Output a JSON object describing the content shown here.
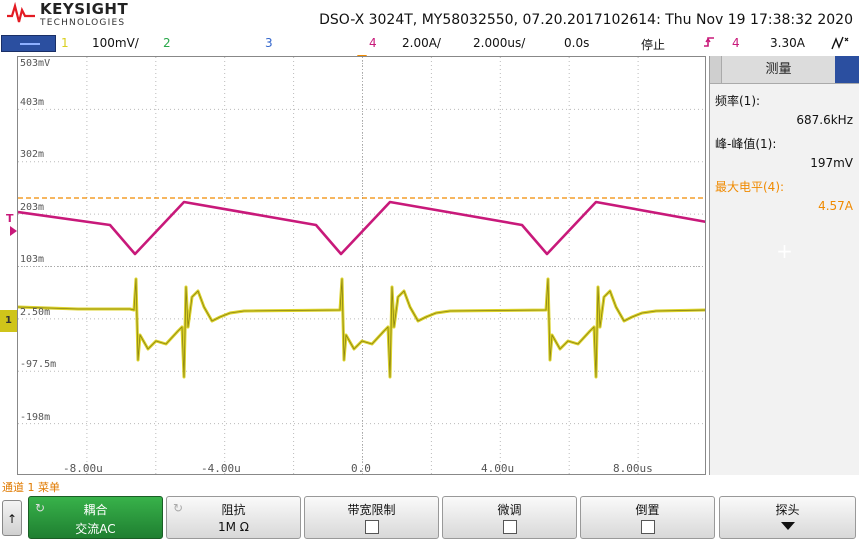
{
  "header": {
    "brand": "KEYSIGHT",
    "brand_sub": "TECHNOLOGIES",
    "model_line": "DSO-X 3024T, MY58032550, 07.20.2017102614: Thu Nov 19 17:38:32 2020"
  },
  "status_bar": {
    "ch1_num": "1",
    "ch1_scale": "100mV/",
    "ch2_num": "2",
    "ch3_num": "3",
    "ch4_num": "4",
    "ch4_scale": "2.00A/",
    "timebase": "2.000us/",
    "delay": "0.0s",
    "run_state": "停止",
    "trig_icon": "rising-edge-icon",
    "trig_channel": "4",
    "trig_level": "3.30A",
    "acq_icon": "acquisition-icon"
  },
  "colors": {
    "ch1": "#d9cf1e",
    "ch4": "#c8197a",
    "trigger": "#f08a00",
    "softkey_active": "#2a9a3e",
    "accent_blue": "#2b4fa0"
  },
  "scope": {
    "y_labels": [
      "503mV",
      "403m",
      "302m",
      "203m",
      "103m",
      "2.50m",
      "-97.5m",
      "-198m"
    ],
    "x_labels": [
      "-8.00u",
      "-4.00u",
      "0.0",
      "4.00u",
      "8.00us"
    ],
    "ch4_marker": "T",
    "ch1_marker": "1"
  },
  "measurements": {
    "title": "测量",
    "items": [
      {
        "label": "频率(1):",
        "value": "687.6kHz",
        "highlight": false
      },
      {
        "label": "峰-峰值(1):",
        "value": "197mV",
        "highlight": false
      },
      {
        "label": "最大电平(4):",
        "value": "4.57A",
        "highlight": true
      }
    ],
    "add_symbol": "+"
  },
  "help_text": "通道 1 菜单",
  "softkeys": {
    "up_symbol": "↑",
    "coupling": {
      "label": "耦合",
      "value": "交流AC"
    },
    "impedance": {
      "label": "阻抗",
      "value": "1M Ω"
    },
    "bw_limit": {
      "label": "带宽限制"
    },
    "fine": {
      "label": "微调"
    },
    "invert": {
      "label": "倒置"
    },
    "probe": {
      "label": "探头"
    }
  }
}
